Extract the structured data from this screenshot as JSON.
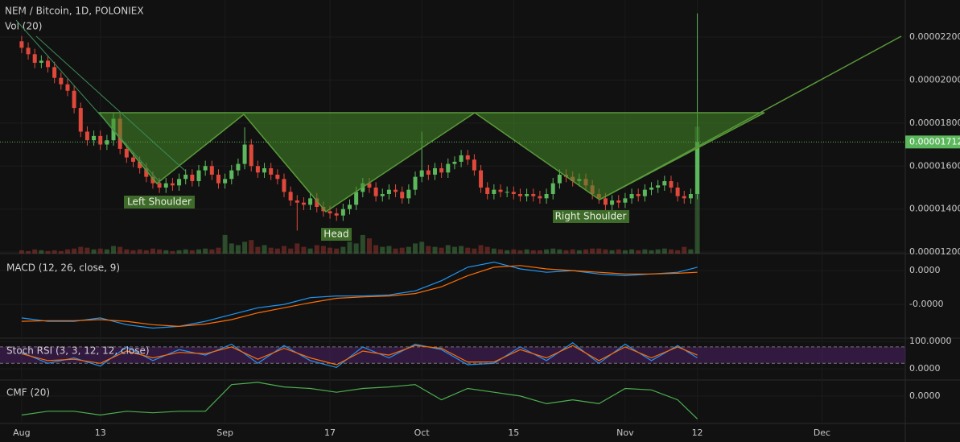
{
  "chart_data": {
    "type": "candlestick",
    "title": "NEM / Bitcoin, 1D, POLONIEX",
    "volume_title": "Vol (20)",
    "up_color": "#5cb85c",
    "down_color": "#e0483b",
    "x": [
      0,
      1,
      2,
      3,
      4,
      5,
      6,
      7,
      8,
      9,
      10,
      11,
      12,
      13,
      14,
      15,
      16,
      17,
      18,
      19,
      20,
      21,
      22,
      23,
      24,
      25,
      26,
      27,
      28,
      29,
      30,
      31,
      32,
      33,
      34,
      35,
      36,
      37,
      38,
      39,
      40,
      41,
      42,
      43,
      44,
      45,
      46,
      47,
      48,
      49,
      50,
      51,
      52,
      53,
      54,
      55,
      56,
      57,
      58,
      59,
      60,
      61,
      62,
      63,
      64,
      65,
      66,
      67,
      68,
      69,
      70,
      71,
      72,
      73,
      74,
      75,
      76,
      77,
      78,
      79,
      80,
      81,
      82,
      83,
      84,
      85,
      86,
      87,
      88,
      89,
      90,
      91,
      92,
      93,
      94,
      95,
      96,
      97,
      98,
      99,
      100,
      101,
      102,
      103
    ],
    "open": [
      2.18e-05,
      2.15e-05,
      2.12e-05,
      2.08e-05,
      2.09e-05,
      2.06e-05,
      2.01e-05,
      1.98e-05,
      1.95e-05,
      1.87e-05,
      1.76e-05,
      1.72e-05,
      1.74e-05,
      1.7e-05,
      1.72e-05,
      1.82e-05,
      1.68e-05,
      1.64e-05,
      1.62e-05,
      1.59e-05,
      1.55e-05,
      1.52e-05,
      1.5e-05,
      1.52e-05,
      1.51e-05,
      1.54e-05,
      1.56e-05,
      1.53e-05,
      1.58e-05,
      1.6e-05,
      1.56e-05,
      1.52e-05,
      1.54e-05,
      1.58e-05,
      1.61e-05,
      1.7e-05,
      1.6e-05,
      1.57e-05,
      1.59e-05,
      1.56e-05,
      1.54e-05,
      1.48e-05,
      1.44e-05,
      1.43e-05,
      1.42e-05,
      1.45e-05,
      1.41e-05,
      1.39e-05,
      1.38e-05,
      1.37e-05,
      1.4e-05,
      1.42e-05,
      1.48e-05,
      1.52e-05,
      1.5e-05,
      1.46e-05,
      1.47e-05,
      1.49e-05,
      1.48e-05,
      1.45e-05,
      1.49e-05,
      1.55e-05,
      1.58e-05,
      1.56e-05,
      1.59e-05,
      1.57e-05,
      1.61e-05,
      1.62e-05,
      1.65e-05,
      1.63e-05,
      1.58e-05,
      1.5e-05,
      1.47e-05,
      1.49e-05,
      1.48e-05,
      1.48e-05,
      1.47e-05,
      1.46e-05,
      1.47e-05,
      1.46e-05,
      1.45e-05,
      1.47e-05,
      1.52e-05,
      1.56e-05,
      1.55e-05,
      1.53e-05,
      1.54e-05,
      1.51e-05,
      1.47e-05,
      1.45e-05,
      1.42e-05,
      1.44e-05,
      1.43e-05,
      1.45e-05,
      1.47e-05,
      1.46e-05,
      1.49e-05,
      1.5e-05,
      1.51e-05,
      1.53e-05,
      1.5e-05,
      1.46e-05,
      1.45e-05,
      1.47e-05
    ],
    "high": [
      2.205e-05,
      2.175e-05,
      2.145e-05,
      2.115e-05,
      2.115e-05,
      2.085e-05,
      2.035e-05,
      2.005e-05,
      1.975e-05,
      1.895e-05,
      1.785e-05,
      1.765e-05,
      1.765e-05,
      1.745e-05,
      1.845e-05,
      1.845e-05,
      1.705e-05,
      1.665e-05,
      1.645e-05,
      1.615e-05,
      1.575e-05,
      1.545e-05,
      1.545e-05,
      1.545e-05,
      1.565e-05,
      1.585e-05,
      1.585e-05,
      1.605e-05,
      1.625e-05,
      1.625e-05,
      1.585e-05,
      1.565e-05,
      1.605e-05,
      1.635e-05,
      1.78e-05,
      1.725e-05,
      1.625e-05,
      1.615e-05,
      1.615e-05,
      1.585e-05,
      1.565e-05,
      1.505e-05,
      1.465e-05,
      1.455e-05,
      1.475e-05,
      1.475e-05,
      1.435e-05,
      1.415e-05,
      1.405e-05,
      1.425e-05,
      1.445e-05,
      1.505e-05,
      1.545e-05,
      1.545e-05,
      1.525e-05,
      1.495e-05,
      1.515e-05,
      1.515e-05,
      1.505e-05,
      1.515e-05,
      1.575e-05,
      1.76e-05,
      1.605e-05,
      1.615e-05,
      1.615e-05,
      1.635e-05,
      1.645e-05,
      1.675e-05,
      1.675e-05,
      1.655e-05,
      1.605e-05,
      1.525e-05,
      1.515e-05,
      1.515e-05,
      1.505e-05,
      1.505e-05,
      1.495e-05,
      1.495e-05,
      1.495e-05,
      1.485e-05,
      1.495e-05,
      1.545e-05,
      1.585e-05,
      1.585e-05,
      1.575e-05,
      1.565e-05,
      1.565e-05,
      1.535e-05,
      1.495e-05,
      1.475e-05,
      1.465e-05,
      1.465e-05,
      1.475e-05,
      1.495e-05,
      1.495e-05,
      1.515e-05,
      1.525e-05,
      1.535e-05,
      1.555e-05,
      1.555e-05,
      1.525e-05,
      1.485e-05,
      1.495e-05,
      2.31e-05
    ],
    "low": [
      2.125e-05,
      2.095e-05,
      2.055e-05,
      2.055e-05,
      2.035e-05,
      1.985e-05,
      1.955e-05,
      1.925e-05,
      1.845e-05,
      1.735e-05,
      1.695e-05,
      1.695e-05,
      1.675e-05,
      1.675e-05,
      1.695e-05,
      1.655e-05,
      1.615e-05,
      1.595e-05,
      1.565e-05,
      1.525e-05,
      1.495e-05,
      1.475e-05,
      1.475e-05,
      1.485e-05,
      1.485e-05,
      1.515e-05,
      1.505e-05,
      1.505e-05,
      1.555e-05,
      1.535e-05,
      1.495e-05,
      1.495e-05,
      1.515e-05,
      1.555e-05,
      1.585e-05,
      1.575e-05,
      1.545e-05,
      1.545e-05,
      1.535e-05,
      1.515e-05,
      1.455e-05,
      1.415e-05,
      1.3e-05,
      1.395e-05,
      1.395e-05,
      1.385e-05,
      1.365e-05,
      1.355e-05,
      1.345e-05,
      1.345e-05,
      1.375e-05,
      1.395e-05,
      1.455e-05,
      1.475e-05,
      1.435e-05,
      1.435e-05,
      1.445e-05,
      1.455e-05,
      1.425e-05,
      1.425e-05,
      1.465e-05,
      1.525e-05,
      1.535e-05,
      1.535e-05,
      1.545e-05,
      1.545e-05,
      1.585e-05,
      1.595e-05,
      1.605e-05,
      1.555e-05,
      1.475e-05,
      1.445e-05,
      1.445e-05,
      1.455e-05,
      1.455e-05,
      1.445e-05,
      1.435e-05,
      1.435e-05,
      1.435e-05,
      1.425e-05,
      1.425e-05,
      1.445e-05,
      1.495e-05,
      1.525e-05,
      1.505e-05,
      1.505e-05,
      1.485e-05,
      1.445e-05,
      1.425e-05,
      1.395e-05,
      1.395e-05,
      1.405e-05,
      1.405e-05,
      1.425e-05,
      1.435e-05,
      1.435e-05,
      1.465e-05,
      1.475e-05,
      1.485e-05,
      1.475e-05,
      1.435e-05,
      1.425e-05,
      1.425e-05,
      1.445e-05
    ],
    "close": [
      2.15e-05,
      2.12e-05,
      2.08e-05,
      2.09e-05,
      2.06e-05,
      2.01e-05,
      1.98e-05,
      1.95e-05,
      1.87e-05,
      1.76e-05,
      1.72e-05,
      1.74e-05,
      1.7e-05,
      1.72e-05,
      1.82e-05,
      1.68e-05,
      1.64e-05,
      1.62e-05,
      1.59e-05,
      1.55e-05,
      1.52e-05,
      1.5e-05,
      1.52e-05,
      1.51e-05,
      1.54e-05,
      1.56e-05,
      1.53e-05,
      1.58e-05,
      1.6e-05,
      1.56e-05,
      1.52e-05,
      1.54e-05,
      1.58e-05,
      1.61e-05,
      1.7e-05,
      1.6e-05,
      1.57e-05,
      1.59e-05,
      1.56e-05,
      1.54e-05,
      1.48e-05,
      1.44e-05,
      1.43e-05,
      1.42e-05,
      1.45e-05,
      1.41e-05,
      1.39e-05,
      1.38e-05,
      1.37e-05,
      1.4e-05,
      1.42e-05,
      1.48e-05,
      1.52e-05,
      1.5e-05,
      1.46e-05,
      1.47e-05,
      1.49e-05,
      1.48e-05,
      1.45e-05,
      1.49e-05,
      1.55e-05,
      1.58e-05,
      1.56e-05,
      1.59e-05,
      1.57e-05,
      1.61e-05,
      1.62e-05,
      1.65e-05,
      1.63e-05,
      1.58e-05,
      1.5e-05,
      1.47e-05,
      1.49e-05,
      1.48e-05,
      1.48e-05,
      1.47e-05,
      1.46e-05,
      1.47e-05,
      1.46e-05,
      1.45e-05,
      1.47e-05,
      1.52e-05,
      1.56e-05,
      1.55e-05,
      1.53e-05,
      1.54e-05,
      1.51e-05,
      1.47e-05,
      1.45e-05,
      1.42e-05,
      1.44e-05,
      1.43e-05,
      1.45e-05,
      1.47e-05,
      1.46e-05,
      1.49e-05,
      1.5e-05,
      1.51e-05,
      1.53e-05,
      1.5e-05,
      1.46e-05,
      1.45e-05,
      1.47e-05,
      1.712e-05
    ],
    "volume": [
      4,
      3,
      5,
      4,
      3,
      4,
      3,
      5,
      6,
      8,
      7,
      5,
      6,
      5,
      9,
      8,
      5,
      4,
      5,
      4,
      6,
      5,
      4,
      3,
      4,
      5,
      4,
      5,
      6,
      5,
      7,
      22,
      12,
      10,
      14,
      16,
      8,
      10,
      7,
      6,
      9,
      6,
      12,
      8,
      6,
      10,
      9,
      7,
      6,
      8,
      14,
      12,
      22,
      18,
      10,
      8,
      9,
      6,
      7,
      8,
      12,
      14,
      9,
      8,
      7,
      10,
      8,
      9,
      7,
      6,
      10,
      8,
      6,
      5,
      4,
      5,
      4,
      5,
      4,
      4,
      5,
      6,
      5,
      4,
      5,
      4,
      5,
      6,
      6,
      5,
      4,
      5,
      4,
      5,
      4,
      5,
      4,
      5,
      6,
      5,
      4,
      8,
      5,
      150
    ],
    "vlim": [
      0,
      300
    ],
    "xlim": [
      -3.3,
      134.7
    ],
    "xticks": [
      {
        "value": 0,
        "label": "Aug"
      },
      {
        "value": 12,
        "label": "13"
      },
      {
        "value": 31,
        "label": "Sep"
      },
      {
        "value": 47,
        "label": "17"
      },
      {
        "value": 61,
        "label": "Oct"
      },
      {
        "value": 75,
        "label": "15"
      },
      {
        "value": 92,
        "label": "Nov"
      },
      {
        "value": 103,
        "label": "12"
      },
      {
        "value": 122,
        "label": "Dec"
      }
    ],
    "ylim": [
      1.193e-05,
      2.372e-05
    ],
    "yticks": [
      {
        "value": 2.2e-05,
        "label": "0.00002200"
      },
      {
        "value": 2e-05,
        "label": "0.00002000"
      },
      {
        "value": 1.8e-05,
        "label": "0.00001800"
      },
      {
        "value": 1.6e-05,
        "label": "0.00001600"
      },
      {
        "value": 1.4e-05,
        "label": "0.00001400"
      },
      {
        "value": 1.2e-05,
        "label": "0.00001200"
      }
    ],
    "annotations": [
      "Left Shoulder",
      "Head",
      "Right Shoulder"
    ],
    "indicators": [
      {
        "title": "MACD (12, 26, close, 9)",
        "type": "line",
        "x": [
          0,
          4,
          8,
          12,
          16,
          20,
          24,
          28,
          32,
          36,
          40,
          44,
          48,
          52,
          56,
          60,
          64,
          68,
          72,
          76,
          80,
          84,
          88,
          92,
          96,
          100,
          103
        ],
        "series": [
          {
            "color": "#2196f3",
            "values": [
              -1.4e-06,
              -1.5e-06,
              -1.5e-06,
              -1.4e-06,
              -1.6e-06,
              -1.7e-06,
              -1.65e-06,
              -1.5e-06,
              -1.3e-06,
              -1.1e-06,
              -1e-06,
              -8e-07,
              -7.5e-07,
              -7.5e-07,
              -7.2e-07,
              -6e-07,
              -3e-07,
              1e-07,
              2.5e-07,
              5e-08,
              -5e-08,
              0,
              -1e-07,
              -1.5e-07,
              -1e-07,
              -5e-08,
              1e-07
            ]
          },
          {
            "color": "#ff6d00",
            "values": [
              -1.5e-06,
              -1.48e-06,
              -1.48e-06,
              -1.45e-06,
              -1.5e-06,
              -1.6e-06,
              -1.65e-06,
              -1.58e-06,
              -1.45e-06,
              -1.25e-06,
              -1.1e-06,
              -9.5e-07,
              -8.2e-07,
              -7.8e-07,
              -7.5e-07,
              -6.8e-07,
              -4.8e-07,
              -1.5e-07,
              1e-07,
              1.5e-07,
              5e-08,
              0,
              -5e-08,
              -1e-07,
              -1e-07,
              -8e-08,
              -5e-08
            ]
          }
        ],
        "ylim": [
          -1.95e-06,
          4.3e-07
        ],
        "yticks": [
          {
            "value": 0,
            "label": "0.0000"
          },
          {
            "value": -1e-06,
            "label": "-0.0000"
          }
        ]
      },
      {
        "title": "Stoch RSI (3, 3, 12, 12, close)",
        "type": "line",
        "x": [
          0,
          4,
          8,
          12,
          16,
          20,
          24,
          28,
          32,
          36,
          40,
          44,
          48,
          52,
          56,
          60,
          64,
          68,
          72,
          76,
          80,
          84,
          88,
          92,
          96,
          100,
          103
        ],
        "series": [
          {
            "color": "#2196f3",
            "values": [
              60,
              20,
              40,
              10,
              80,
              30,
              70,
              50,
              90,
              20,
              85,
              30,
              5,
              80,
              40,
              90,
              70,
              15,
              20,
              80,
              30,
              95,
              20,
              90,
              30,
              85,
              40
            ]
          },
          {
            "color": "#ff6d00",
            "values": [
              55,
              30,
              35,
              20,
              65,
              40,
              60,
              55,
              80,
              35,
              75,
              40,
              15,
              65,
              50,
              85,
              75,
              25,
              25,
              70,
              40,
              85,
              30,
              80,
              40,
              80,
              50
            ]
          }
        ],
        "bands": [
          80,
          20
        ],
        "ylim": [
          -35,
          109
        ],
        "yticks": [
          {
            "value": 100,
            "label": "100.0000"
          },
          {
            "value": 0,
            "label": "0.0000"
          }
        ]
      },
      {
        "title": "CMF (20)",
        "type": "line",
        "x": [
          0,
          4,
          8,
          12,
          16,
          20,
          24,
          28,
          32,
          36,
          40,
          44,
          48,
          52,
          56,
          60,
          64,
          68,
          72,
          76,
          80,
          84,
          88,
          92,
          96,
          100,
          103
        ],
        "series": [
          {
            "color": "#4caf50",
            "values": [
              -0.25,
              -0.2,
              -0.2,
              -0.25,
              -0.2,
              -0.22,
              -0.2,
              -0.2,
              0.15,
              0.18,
              0.12,
              0.1,
              0.05,
              0.1,
              0.12,
              0.15,
              -0.05,
              0.1,
              0.05,
              0,
              -0.1,
              -0.05,
              -0.1,
              0.1,
              0.08,
              -0.05,
              -0.3
            ]
          }
        ],
        "ylim": [
          -0.35,
          0.2
        ],
        "yticks": [
          {
            "value": 0,
            "label": "0.0000"
          }
        ]
      }
    ]
  }
}
